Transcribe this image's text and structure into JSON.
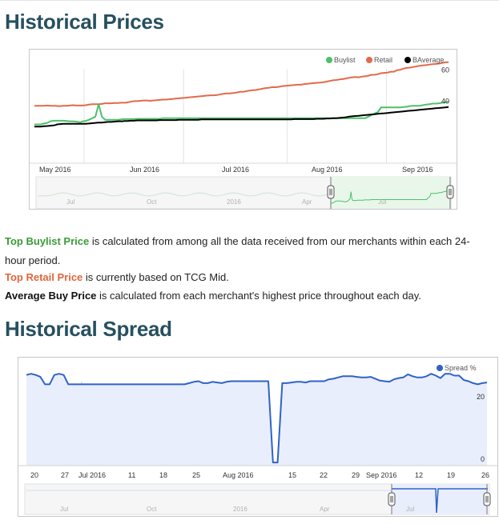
{
  "section1": {
    "title": "Historical Prices",
    "desc_buylist_label": "Top Buylist Price",
    "desc_buylist_text": " is calculated from among all the data received from our merchants within each 24-hour period.",
    "desc_retail_label": "Top Retail Price",
    "desc_retail_text": " is currently based on TCG Mid.",
    "desc_avg_label": "Average Buy Price",
    "desc_avg_text": " is calculated from each merchant's highest price throughout each day."
  },
  "section2": {
    "title": "Historical Spread"
  },
  "colors": {
    "buylist": "#4cc16a",
    "retail": "#e3694b",
    "average": "#000000",
    "spread": "#2f62c9",
    "spread_fill": "#e9eefc",
    "heading": "#27505e"
  },
  "chart_data": [
    {
      "type": "line",
      "title": "",
      "legend": [
        "Buylist",
        "Retail",
        "BAverage"
      ],
      "legend_position": "top-right",
      "ylim": [
        0,
        66
      ],
      "y_ticks": [
        "40",
        "60"
      ],
      "x_ticks": [
        "May 2016",
        "Jun 2016",
        "Jul 2016",
        "Aug 2016",
        "Sep 2016"
      ],
      "navigator_ticks": [
        "Jul",
        "Oct",
        "2016",
        "Apr",
        "Jul"
      ],
      "x": [
        0,
        4,
        8,
        12,
        16,
        20,
        24,
        26,
        27,
        28,
        32,
        36,
        40,
        44,
        48,
        52,
        56,
        58,
        60,
        64,
        68,
        72,
        76,
        80,
        84,
        88,
        92,
        96,
        100,
        104,
        108,
        110,
        112,
        113,
        114,
        116,
        120,
        124,
        128,
        132,
        136,
        140,
        144,
        148,
        152,
        156,
        160,
        164,
        168,
        172,
        176,
        180,
        184,
        188,
        192,
        196,
        200,
        204,
        208,
        212,
        216,
        220,
        224,
        228,
        232,
        236,
        240,
        244,
        248,
        252,
        256,
        260,
        264,
        268,
        272,
        276,
        280,
        284,
        288,
        292,
        296,
        300,
        304,
        308,
        312,
        316,
        320,
        324,
        328,
        332,
        336,
        340,
        344,
        348,
        352,
        356,
        360,
        364,
        368,
        372,
        376,
        380,
        384,
        388,
        392,
        396,
        400,
        404,
        408,
        412,
        416,
        420,
        424,
        428,
        432,
        436,
        440,
        444,
        448,
        452,
        456,
        460,
        464,
        468,
        472,
        476,
        480,
        484,
        488,
        492,
        496,
        500,
        504,
        508,
        512,
        516
      ],
      "series": [
        {
          "name": "Retail",
          "values": [
            37,
            37,
            37,
            37,
            37.2,
            37,
            37,
            37,
            37,
            36.8,
            36.8,
            37,
            37,
            37.2,
            37.4,
            37.2,
            37.2,
            37.2,
            37.2,
            37.4,
            37.8,
            38,
            38,
            38,
            38.2,
            38.6,
            38.6,
            38.6,
            38.8,
            38.8,
            39,
            39,
            39,
            39,
            39,
            39.2,
            39.6,
            40,
            40,
            40.2,
            40.4,
            40.4,
            40.2,
            40.4,
            40.6,
            40.8,
            41,
            41,
            41.2,
            41.4,
            41.6,
            41.8,
            42,
            42.2,
            42.4,
            42.6,
            42.8,
            43,
            43.2,
            43.4,
            43.6,
            43.8,
            43.8,
            44,
            44.4,
            44.8,
            45,
            45,
            45.2,
            45.6,
            46,
            46,
            46.4,
            46.8,
            47,
            47.2,
            47.6,
            48,
            48.4,
            48.6,
            49,
            49,
            49.2,
            49.6,
            49.8,
            50,
            50.2,
            50.4,
            50.6,
            50.6,
            51,
            51.2,
            51.4,
            51.6,
            51.8,
            52,
            52.2,
            52.6,
            53,
            53.4,
            53.6,
            54,
            54.2,
            54.6,
            55,
            55.4,
            55.6,
            55.4,
            55.8,
            56,
            56.4,
            57,
            57,
            57.4,
            58,
            58.2,
            58.4,
            59,
            59,
            60,
            60.2,
            61,
            61.4,
            61.6,
            62,
            62.4,
            62.8,
            63,
            63.2,
            63.6,
            63.8,
            64,
            64.2,
            64.6,
            65,
            65.2
          ]
        },
        {
          "name": "Buylist",
          "values": [
            25,
            25,
            25,
            25.6,
            26,
            27,
            27.4,
            27.4,
            27.4,
            27.4,
            27.4,
            27.4,
            27.2,
            27,
            27,
            26.8,
            26.4,
            26.4,
            27,
            27.2,
            28,
            29,
            30,
            38,
            30,
            28,
            28,
            28,
            28,
            28,
            28.2,
            28.4,
            28.4,
            28.4,
            28.4,
            28.4,
            28.4,
            28.4,
            28.6,
            28.6,
            28.6,
            28.6,
            28.6,
            28.6,
            28.6,
            28.6,
            29,
            29,
            29,
            29,
            29,
            29,
            29,
            29,
            29,
            29,
            29,
            29,
            29,
            29,
            29,
            29,
            29,
            29,
            29,
            29,
            29,
            29,
            29,
            29,
            29,
            29,
            29,
            29,
            29,
            29,
            29,
            29,
            29,
            29,
            29,
            29,
            29,
            29,
            29,
            29,
            29,
            29,
            29,
            29,
            29,
            29,
            29,
            29,
            29,
            29,
            29,
            29,
            29,
            29,
            29,
            29,
            29,
            29,
            29,
            29,
            29,
            29,
            29,
            29,
            30,
            31,
            32,
            33,
            36,
            36,
            36,
            36,
            36,
            36,
            36,
            36.2,
            36.4,
            36.8,
            37,
            37,
            37,
            37.4,
            37.8,
            38,
            38.4,
            38.4,
            38.6,
            39,
            39.2,
            39.8
          ]
        },
        {
          "name": "BAverage",
          "values": [
            23.6,
            23.6,
            23.6,
            23.8,
            24,
            24.2,
            24.4,
            24.6,
            24.8,
            25,
            25.2,
            25.4,
            25.4,
            25.4,
            25.4,
            25.4,
            25.4,
            25.4,
            25.4,
            25.4,
            25.6,
            25.8,
            26,
            26.2,
            26.2,
            26.4,
            26.6,
            26.6,
            26.8,
            27,
            27,
            27,
            27.2,
            27.2,
            27.2,
            27.2,
            27.4,
            27.4,
            27.6,
            27.6,
            27.6,
            27.6,
            27.6,
            27.6,
            27.6,
            27.8,
            27.8,
            27.8,
            27.8,
            27.8,
            27.8,
            28,
            28,
            28,
            28,
            28,
            28,
            28,
            28.2,
            28.2,
            28.2,
            28.2,
            28.2,
            28.2,
            28.2,
            28.2,
            28.2,
            28.2,
            28.2,
            28.2,
            28.2,
            28.2,
            28.2,
            28.2,
            28.2,
            28.2,
            28.2,
            28.2,
            28.2,
            28.2,
            28.2,
            28.2,
            28.2,
            28.2,
            28.2,
            28.2,
            28.2,
            28.4,
            28.4,
            28.4,
            28.4,
            28.4,
            28.4,
            28.4,
            28.6,
            28.6,
            28.6,
            28.8,
            28.8,
            29,
            29,
            29.2,
            29.4,
            29.6,
            30,
            30.2,
            30.4,
            30.6,
            30.8,
            31,
            31.2,
            31.4,
            31.6,
            31.8,
            32,
            32.2,
            32.4,
            32.6,
            32.8,
            33,
            33.2,
            33.4,
            33.6,
            33.8,
            34,
            34.2,
            34.4,
            34.6,
            34.8,
            35,
            35.2,
            35.4,
            35.6,
            35.8,
            36,
            36.2
          ]
        }
      ]
    },
    {
      "type": "area",
      "title": "",
      "legend": [
        "Spread %"
      ],
      "legend_position": "top-right",
      "ylim": [
        -2,
        30
      ],
      "y_ticks": [
        "0",
        "20"
      ],
      "x_ticks": [
        "20",
        "27",
        "Jul 2016",
        "11",
        "18",
        "25",
        "Aug 2016",
        "15",
        "22",
        "29",
        "Sep 2016",
        "12",
        "19",
        "26"
      ],
      "navigator_ticks": [
        "Jul",
        "Oct",
        "2016",
        "Apr",
        "Jul"
      ],
      "x": [
        0,
        1,
        2,
        3,
        4,
        5,
        6,
        7,
        8,
        9,
        10,
        11,
        12,
        13,
        14,
        15,
        16,
        17,
        18,
        19,
        20,
        21,
        22,
        23,
        24,
        25,
        26,
        27,
        28,
        29,
        30,
        31,
        32,
        33,
        34,
        35,
        36,
        37,
        38,
        39,
        40,
        41,
        42,
        43,
        44,
        45,
        46,
        47,
        48,
        49,
        50,
        51,
        52,
        53,
        54,
        55,
        56,
        57,
        58,
        59,
        60,
        61,
        62,
        63,
        64,
        65,
        66,
        67,
        68,
        69,
        70,
        71,
        72,
        73,
        74,
        75,
        76,
        77,
        78,
        79,
        80,
        81,
        82,
        83,
        84,
        85,
        86,
        87,
        88,
        89,
        90,
        91,
        92,
        93,
        94,
        95,
        96,
        97,
        98,
        99
      ],
      "series": [
        {
          "name": "Spread %",
          "values": [
            27,
            27.4,
            27,
            26.4,
            24,
            24,
            27,
            27.4,
            27,
            24,
            24,
            24,
            24,
            24,
            24,
            24,
            24,
            24,
            24,
            24,
            24,
            24,
            24,
            24,
            24,
            24,
            24,
            24,
            24,
            24,
            24,
            24,
            24,
            24,
            24,
            24.4,
            24.8,
            25,
            24.4,
            24.4,
            24.8,
            24.6,
            24.4,
            24.8,
            25,
            25,
            25,
            25,
            25,
            25,
            25,
            25,
            25,
            -1,
            -1,
            24.4,
            24.4,
            24.6,
            24.8,
            24.8,
            24.6,
            25,
            25,
            25,
            25,
            25.6,
            25.8,
            26.2,
            26.6,
            26.6,
            26.6,
            26.4,
            26.2,
            26.2,
            26.4,
            25.8,
            25.2,
            25,
            24.8,
            25.6,
            26,
            26.2,
            27.2,
            26.6,
            26.2,
            26.2,
            26.6,
            27.4,
            26.8,
            26,
            27.4,
            27.4,
            26.8,
            26.8,
            25.4,
            25,
            24.4,
            24,
            24.4,
            24.6
          ]
        }
      ]
    }
  ]
}
